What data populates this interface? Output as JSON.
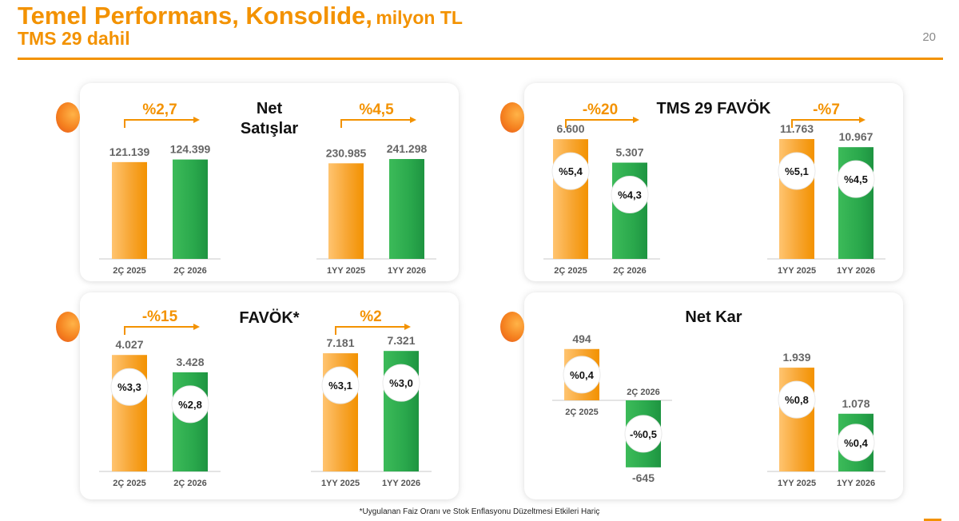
{
  "header": {
    "title": "Temel Performans, Konsolide,",
    "unit": "milyon TL",
    "subtitle": "TMS 29 dahil",
    "page_number": "20"
  },
  "footnote": "*Uygulanan Faiz Oranı ve Stok Enflasyonu Düzeltmesi Etkileri Hariç",
  "colors": {
    "orange": "#f39200",
    "green": "#22a447",
    "grey_text": "#666666"
  },
  "chart_data": [
    {
      "type": "bar",
      "title": "Net Satışlar",
      "groups": [
        {
          "categories": [
            "2Ç 2025",
            "2Ç 2026"
          ],
          "values": [
            121139,
            124399
          ],
          "value_labels": [
            "121.139",
            "124.399"
          ],
          "change": "%2,7",
          "margins": []
        },
        {
          "categories": [
            "1YY 2025",
            "1YY 2026"
          ],
          "values": [
            230985,
            241298
          ],
          "value_labels": [
            "230.985",
            "241.298"
          ],
          "change": "%4,5",
          "margins": []
        }
      ]
    },
    {
      "type": "bar",
      "title": "TMS 29 FAVÖK",
      "groups": [
        {
          "categories": [
            "2Ç 2025",
            "2Ç 2026"
          ],
          "values": [
            6600,
            5307
          ],
          "value_labels": [
            "6.600",
            "5.307"
          ],
          "change": "-%20",
          "margins": [
            "%5,4",
            "%4,3"
          ]
        },
        {
          "categories": [
            "1YY 2025",
            "1YY 2026"
          ],
          "values": [
            11763,
            10967
          ],
          "value_labels": [
            "11.763",
            "10.967"
          ],
          "change": "-%7",
          "margins": [
            "%5,1",
            "%4,5"
          ]
        }
      ]
    },
    {
      "type": "bar",
      "title": "FAVÖK*",
      "groups": [
        {
          "categories": [
            "2Ç 2025",
            "2Ç 2026"
          ],
          "values": [
            4027,
            3428
          ],
          "value_labels": [
            "4.027",
            "3.428"
          ],
          "change": "-%15",
          "margins": [
            "%3,3",
            "%2,8"
          ]
        },
        {
          "categories": [
            "1YY 2025",
            "1YY 2026"
          ],
          "values": [
            7181,
            7321
          ],
          "value_labels": [
            "7.181",
            "7.321"
          ],
          "change": "%2",
          "margins": [
            "%3,1",
            "%3,0"
          ]
        }
      ]
    },
    {
      "type": "bar",
      "title": "Net Kar",
      "groups": [
        {
          "categories": [
            "2Ç 2025",
            "2Ç 2026"
          ],
          "values": [
            494,
            -645
          ],
          "value_labels": [
            "494",
            "-645"
          ],
          "change": "",
          "margins": [
            "%0,4",
            "-%0,5"
          ]
        },
        {
          "categories": [
            "1YY 2025",
            "1YY 2026"
          ],
          "values": [
            1939,
            1078
          ],
          "value_labels": [
            "1.939",
            "1.078"
          ],
          "change": "",
          "margins": [
            "%0,8",
            "%0,4"
          ]
        }
      ]
    }
  ]
}
